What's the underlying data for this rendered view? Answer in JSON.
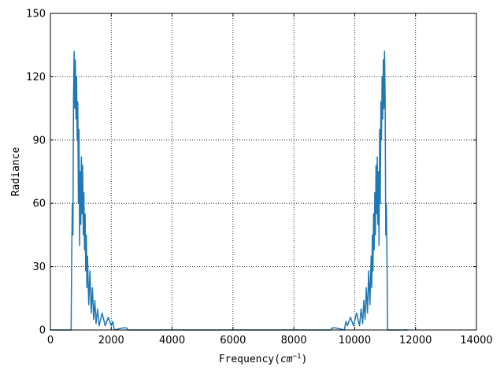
{
  "chart_data": {
    "type": "line",
    "xlabel": [
      "Frequency(",
      "cm",
      "−1",
      ")"
    ],
    "ylabel": "Radiance",
    "xlim": [
      0,
      14000
    ],
    "ylim": [
      0,
      150
    ],
    "xticks": [
      0,
      2000,
      4000,
      6000,
      8000,
      10000,
      12000,
      14000
    ],
    "yticks": [
      0,
      30,
      60,
      90,
      120,
      150
    ],
    "grid": true,
    "series": [
      {
        "color": "#1f77b4",
        "x": [
          0,
          600,
          680,
          700,
          720,
          740,
          760,
          780,
          800,
          820,
          840,
          860,
          880,
          900,
          920,
          940,
          960,
          980,
          1000,
          1020,
          1040,
          1060,
          1080,
          1100,
          1120,
          1140,
          1160,
          1180,
          1200,
          1220,
          1260,
          1300,
          1340,
          1380,
          1420,
          1460,
          1500,
          1550,
          1600,
          1700,
          1800,
          1900,
          2000,
          2050,
          2100,
          2400,
          2500,
          2550,
          5880,
          9210,
          9260,
          9360,
          9660,
          9710,
          9760,
          9860,
          9960,
          10060,
          10160,
          10210,
          10260,
          10300,
          10340,
          10380,
          10420,
          10460,
          10500,
          10540,
          10560,
          10580,
          10600,
          10620,
          10640,
          10660,
          10680,
          10700,
          10720,
          10740,
          10760,
          10780,
          10800,
          10820,
          10840,
          10860,
          10880,
          10900,
          10920,
          10940,
          10960,
          10980,
          11000,
          11020,
          11040,
          11060,
          11080,
          11760
        ],
        "values": [
          0,
          0,
          0,
          35,
          60,
          45,
          110,
          132,
          105,
          128,
          100,
          120,
          90,
          108,
          60,
          95,
          40,
          75,
          50,
          82,
          55,
          78,
          45,
          65,
          38,
          55,
          28,
          45,
          20,
          35,
          12,
          28,
          8,
          20,
          5,
          14,
          3,
          10,
          2,
          8,
          2,
          6,
          2,
          4,
          0,
          1,
          1,
          0,
          0,
          0,
          1,
          1,
          0,
          4,
          2,
          6,
          2,
          8,
          2,
          10,
          3,
          14,
          5,
          20,
          8,
          28,
          12,
          35,
          20,
          45,
          28,
          55,
          38,
          65,
          45,
          78,
          55,
          82,
          50,
          75,
          40,
          95,
          60,
          108,
          90,
          120,
          100,
          128,
          105,
          132,
          110,
          45,
          60,
          35,
          0,
          0
        ]
      }
    ]
  }
}
